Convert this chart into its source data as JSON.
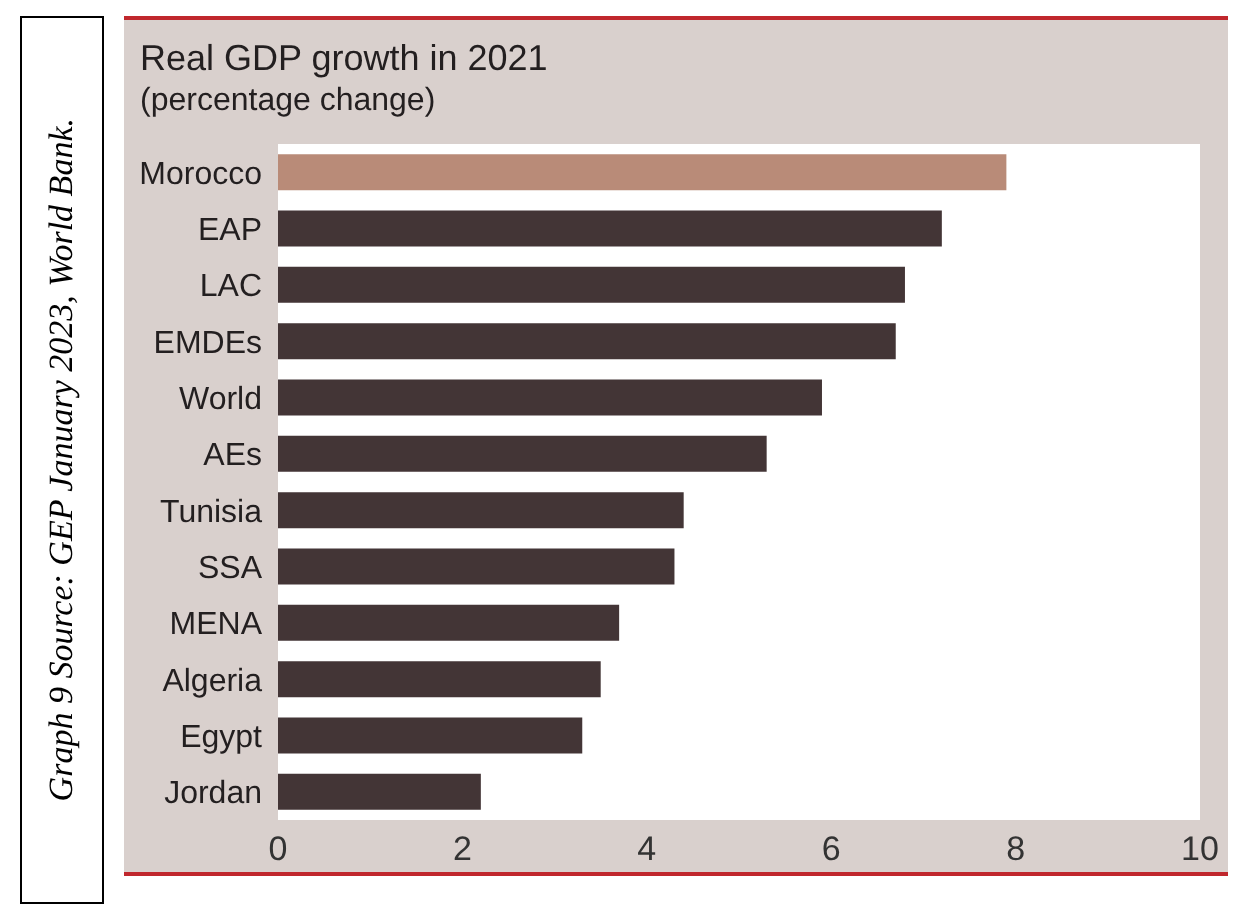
{
  "chart_data": {
    "type": "bar",
    "orientation": "horizontal",
    "title": "Real GDP growth in 2021",
    "subtitle": "(percentage change)",
    "categories": [
      "Morocco",
      "EAP",
      "LAC",
      "EMDEs",
      "World",
      "AEs",
      "Tunisia",
      "SSA",
      "MENA",
      "Algeria",
      "Egypt",
      "Jordan"
    ],
    "values": [
      7.9,
      7.2,
      6.8,
      6.7,
      5.9,
      5.3,
      4.4,
      4.3,
      3.7,
      3.5,
      3.3,
      2.2
    ],
    "colors": [
      "#b98b78",
      "#433536",
      "#433536",
      "#433536",
      "#433536",
      "#433536",
      "#433536",
      "#433536",
      "#433536",
      "#433536",
      "#433536",
      "#433536"
    ],
    "xlim": [
      0,
      10
    ],
    "xticks": [
      0,
      2,
      4,
      6,
      8,
      10
    ],
    "grid": false,
    "legend": false,
    "annotations": [
      "Graph 9 Source: GEP January 2023, World Bank."
    ]
  }
}
